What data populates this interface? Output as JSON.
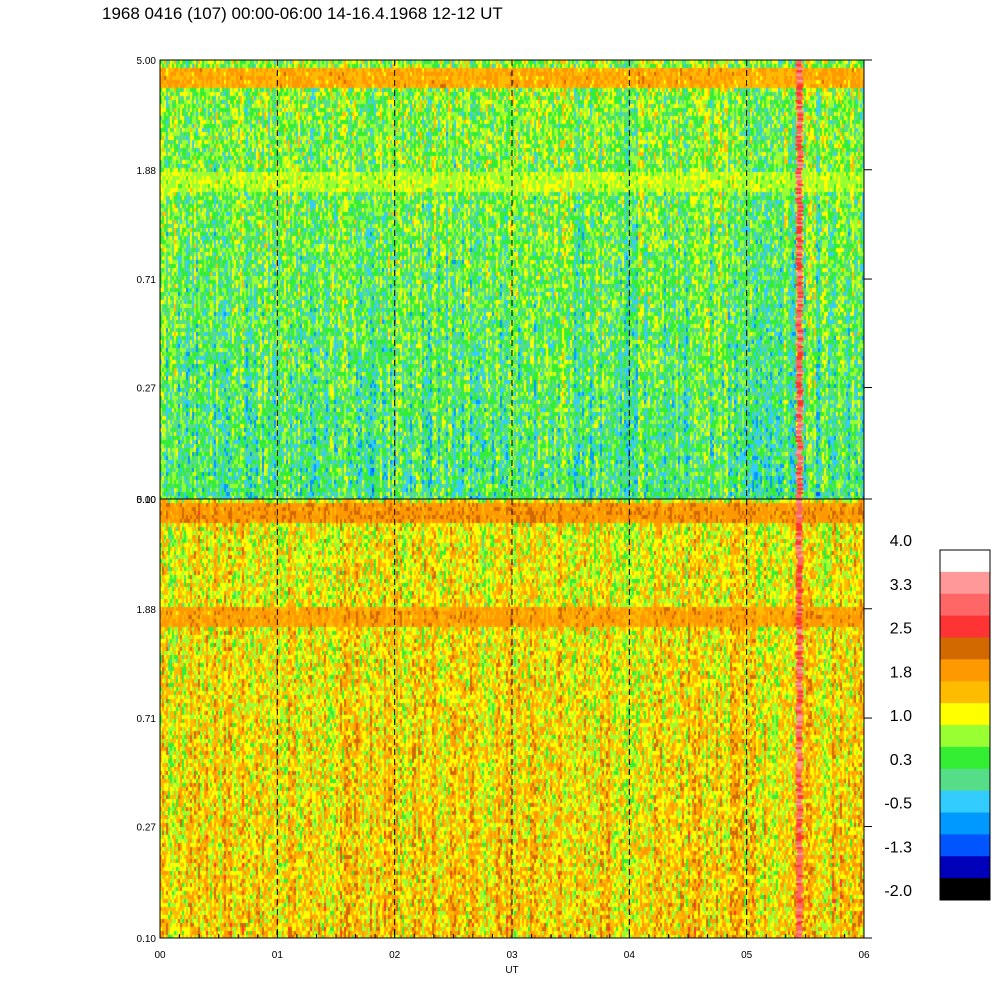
{
  "title": "1968 0416 (107) 00:00-06:00 14-16.4.1968  12-12 UT",
  "chart_data": [
    {
      "type": "heatmap",
      "title": "",
      "xlabel": "",
      "ylabel": "",
      "x_ticks": [
        "00",
        "01",
        "02",
        "03",
        "04",
        "05",
        "06"
      ],
      "y_ticks": [
        "5.00",
        "1.88",
        "0.71",
        "0.27",
        "0.10"
      ],
      "xlim": [
        0,
        6
      ],
      "ylim": [
        0.1,
        5.0
      ],
      "y_scale": "log",
      "dominant_level": 0.5,
      "bands": [
        {
          "y": 4.4,
          "level": 2.2
        },
        {
          "y": 1.7,
          "level": 1.1
        }
      ],
      "event_x": 5.45,
      "event_level": 3.0,
      "dashed_gridlines_x": [
        1,
        2,
        3,
        4,
        5
      ]
    },
    {
      "type": "heatmap",
      "title": "",
      "xlabel": "UT",
      "ylabel": "",
      "x_ticks": [
        "00",
        "01",
        "02",
        "03",
        "04",
        "05",
        "06"
      ],
      "y_ticks": [
        "5.00",
        "1.88",
        "0.71",
        "0.27",
        "0.10"
      ],
      "xlim": [
        0,
        6
      ],
      "ylim": [
        0.1,
        5.0
      ],
      "y_scale": "log",
      "dominant_level": 1.5,
      "bands": [
        {
          "y": 4.5,
          "level": 2.3
        },
        {
          "y": 1.75,
          "level": 2.1
        }
      ],
      "event_x": 5.45,
      "event_level": 3.0,
      "dashed_gridlines_x": [
        1,
        2,
        3,
        4,
        5
      ]
    }
  ],
  "colorbar": {
    "labels": [
      "4.0",
      "3.3",
      "2.5",
      "1.8",
      "1.0",
      "0.3",
      "-0.5",
      "-1.3",
      "-2.0"
    ],
    "colors": [
      "#ffffff",
      "#ff9999",
      "#ff6666",
      "#ff3333",
      "#d26900",
      "#ff9900",
      "#ffbb00",
      "#ffff00",
      "#99ff33",
      "#33ee33",
      "#55dd88",
      "#33ccff",
      "#0099ff",
      "#0055ff",
      "#0000bb",
      "#000000"
    ]
  }
}
